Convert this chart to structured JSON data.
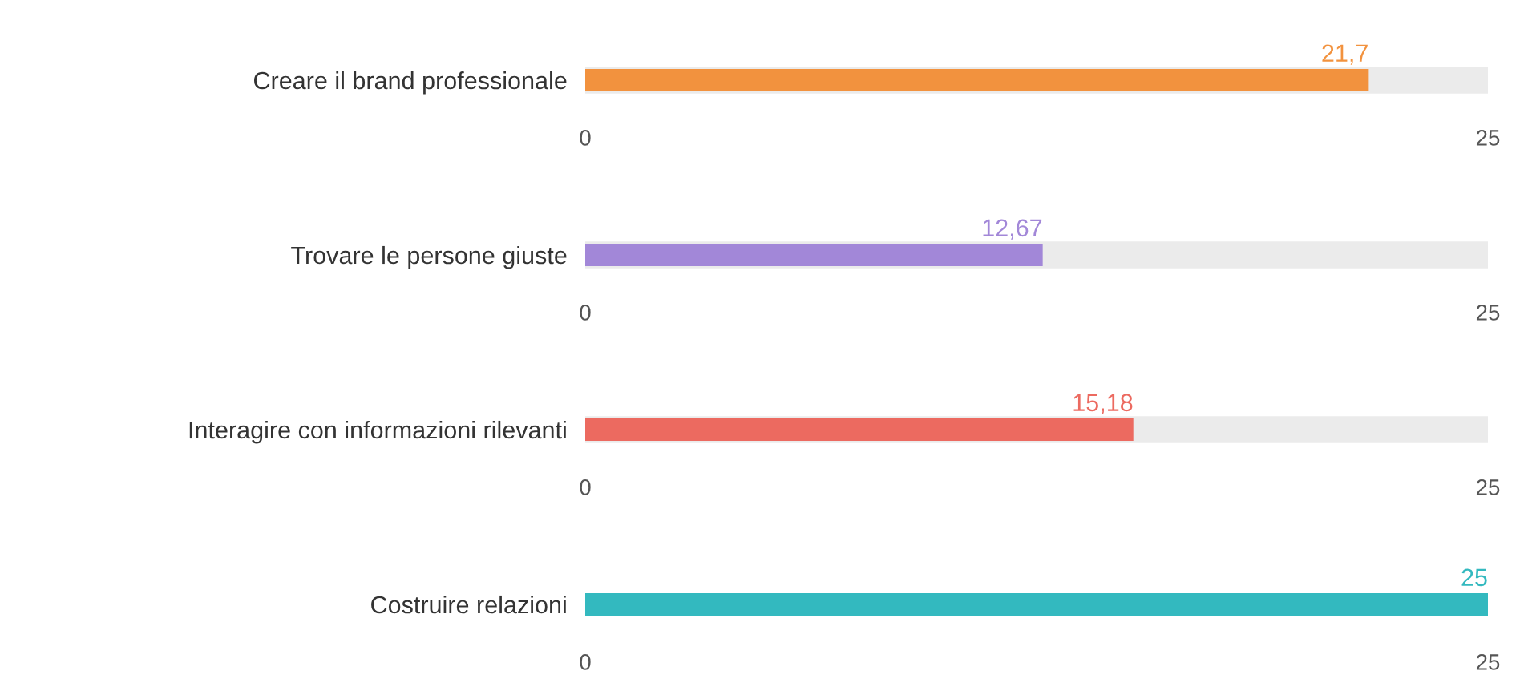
{
  "chart_data": [
    {
      "type": "bar",
      "orientation": "horizontal",
      "categories": [
        "Creare il brand professionale"
      ],
      "values": [
        21.7
      ],
      "value_labels": [
        "21,7"
      ],
      "color": "#f2923e",
      "xlim": [
        0,
        25
      ],
      "xticks": [
        0,
        25
      ],
      "bands": [
        {
          "axis": "x",
          "from": 0,
          "to": 25,
          "color": "#ebebeb"
        }
      ]
    },
    {
      "type": "bar",
      "orientation": "horizontal",
      "categories": [
        "Trovare le persone giuste"
      ],
      "values": [
        12.67
      ],
      "value_labels": [
        "12,67"
      ],
      "color": "#a287d8",
      "xlim": [
        0,
        25
      ],
      "xticks": [
        0,
        25
      ],
      "bands": [
        {
          "axis": "x",
          "from": 0,
          "to": 25,
          "color": "#ebebeb"
        }
      ]
    },
    {
      "type": "bar",
      "orientation": "horizontal",
      "categories": [
        "Interagire con informazioni rilevanti"
      ],
      "values": [
        15.18
      ],
      "value_labels": [
        "15,18"
      ],
      "color": "#ec6a60",
      "xlim": [
        0,
        25
      ],
      "xticks": [
        0,
        25
      ],
      "bands": [
        {
          "axis": "x",
          "from": 0,
          "to": 25,
          "color": "#ebebeb"
        }
      ]
    },
    {
      "type": "bar",
      "orientation": "horizontal",
      "categories": [
        "Costruire relazioni"
      ],
      "values": [
        25
      ],
      "value_labels": [
        "25"
      ],
      "color": "#33b9bf",
      "xlim": [
        0,
        25
      ],
      "xticks": [
        0,
        25
      ]
    }
  ]
}
